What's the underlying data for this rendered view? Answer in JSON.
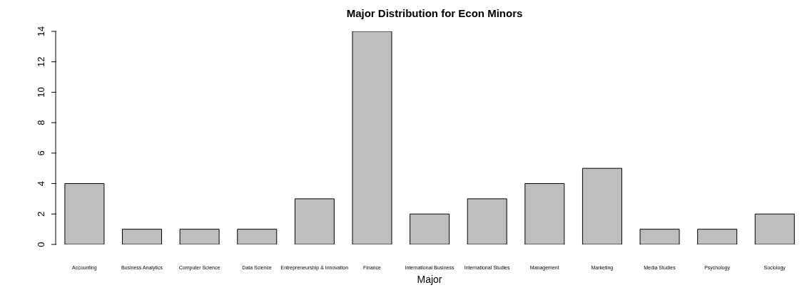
{
  "chart_data": {
    "type": "bar",
    "title": "Major Distribution for Econ Minors",
    "xlabel": "Major",
    "categories": [
      "Accounting",
      "Business Analytics",
      "Computer Science",
      "Data Science",
      "Entrepreneurship & Innovation",
      "Finance",
      "International Business",
      "International Studies",
      "Management",
      "Marketing",
      "Media Studies",
      "Psychology",
      "Sociology"
    ],
    "values": [
      4,
      1,
      1,
      1,
      3,
      14,
      2,
      3,
      4,
      5,
      1,
      1,
      2
    ],
    "color": "#bebebe",
    "ylim": [
      0,
      14
    ],
    "yticks": [
      0,
      2,
      4,
      6,
      8,
      10,
      12,
      14
    ],
    "grid": false
  }
}
